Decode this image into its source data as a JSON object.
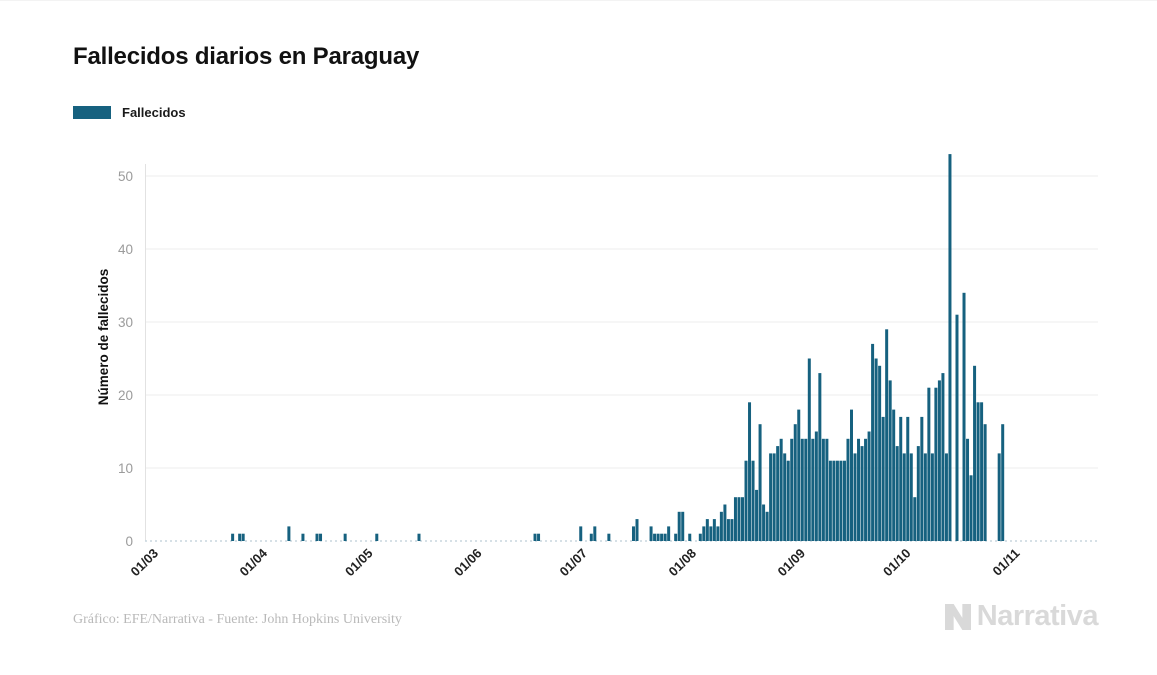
{
  "title": "Fallecidos diarios en Paraguay",
  "legend": {
    "label": "Fallecidos",
    "color": "#16617F"
  },
  "footer": {
    "credit": "Gráfico: EFE/Narrativa - Fuente: John Hopkins University"
  },
  "watermark": {
    "brand": "Narrativa"
  },
  "colors": {
    "bar": "#16617F",
    "grid": "#ededed",
    "axis_line": "#e2e2e2",
    "baseline": "#c8d6de",
    "y_tick_text": "#9b9b9b",
    "x_tick_text": "#222222"
  },
  "chart_data": {
    "type": "bar",
    "title": "Fallecidos diarios en Paraguay",
    "series_name": "Fallecidos",
    "xlabel": "",
    "ylabel": "Número de fallecidos",
    "ylim": [
      0,
      53
    ],
    "yticks": [
      0,
      10,
      20,
      30,
      40,
      50
    ],
    "xticklabels": [
      "01/03",
      "01/04",
      "01/05",
      "01/06",
      "01/07",
      "01/08",
      "01/09",
      "01/10",
      "01/11"
    ],
    "x_unit": "day",
    "start_label": "01/03",
    "month_lengths": [
      31,
      30,
      31,
      30,
      31,
      31,
      30,
      31
    ],
    "grid": "horizontal",
    "legend_position": "top-left",
    "values": [
      0,
      0,
      0,
      0,
      0,
      0,
      0,
      0,
      0,
      0,
      0,
      0,
      0,
      0,
      0,
      0,
      0,
      0,
      0,
      0,
      0,
      0,
      0,
      1,
      0,
      1,
      1,
      0,
      0,
      0,
      0,
      0,
      0,
      0,
      0,
      0,
      0,
      0,
      0,
      2,
      0,
      0,
      0,
      1,
      0,
      0,
      0,
      1,
      1,
      0,
      0,
      0,
      0,
      0,
      0,
      1,
      0,
      0,
      0,
      0,
      0,
      0,
      0,
      0,
      1,
      0,
      0,
      0,
      0,
      0,
      0,
      0,
      0,
      0,
      0,
      0,
      1,
      0,
      0,
      0,
      0,
      0,
      0,
      0,
      0,
      0,
      0,
      0,
      0,
      0,
      0,
      0,
      0,
      0,
      0,
      0,
      0,
      0,
      0,
      0,
      0,
      0,
      0,
      0,
      0,
      0,
      0,
      0,
      0,
      1,
      1,
      0,
      0,
      0,
      0,
      0,
      0,
      0,
      0,
      0,
      0,
      0,
      2,
      0,
      0,
      1,
      2,
      0,
      0,
      0,
      1,
      0,
      0,
      0,
      0,
      0,
      0,
      2,
      3,
      0,
      0,
      0,
      2,
      1,
      1,
      1,
      1,
      2,
      0,
      1,
      4,
      4,
      0,
      1,
      0,
      0,
      1,
      2,
      3,
      2,
      3,
      2,
      4,
      5,
      3,
      3,
      6,
      6,
      6,
      11,
      19,
      11,
      7,
      16,
      5,
      4,
      12,
      12,
      13,
      14,
      12,
      11,
      14,
      16,
      18,
      14,
      14,
      25,
      14,
      15,
      23,
      14,
      14,
      11,
      11,
      11,
      11,
      11,
      14,
      18,
      12,
      14,
      13,
      14,
      15,
      27,
      25,
      24,
      17,
      29,
      22,
      18,
      13,
      17,
      12,
      17,
      12,
      6,
      13,
      17,
      12,
      21,
      12,
      21,
      22,
      23,
      12,
      53,
      0,
      31,
      0,
      34,
      14,
      9,
      24,
      19,
      19,
      16,
      0,
      0,
      0,
      12,
      16,
      0,
      0
    ]
  }
}
